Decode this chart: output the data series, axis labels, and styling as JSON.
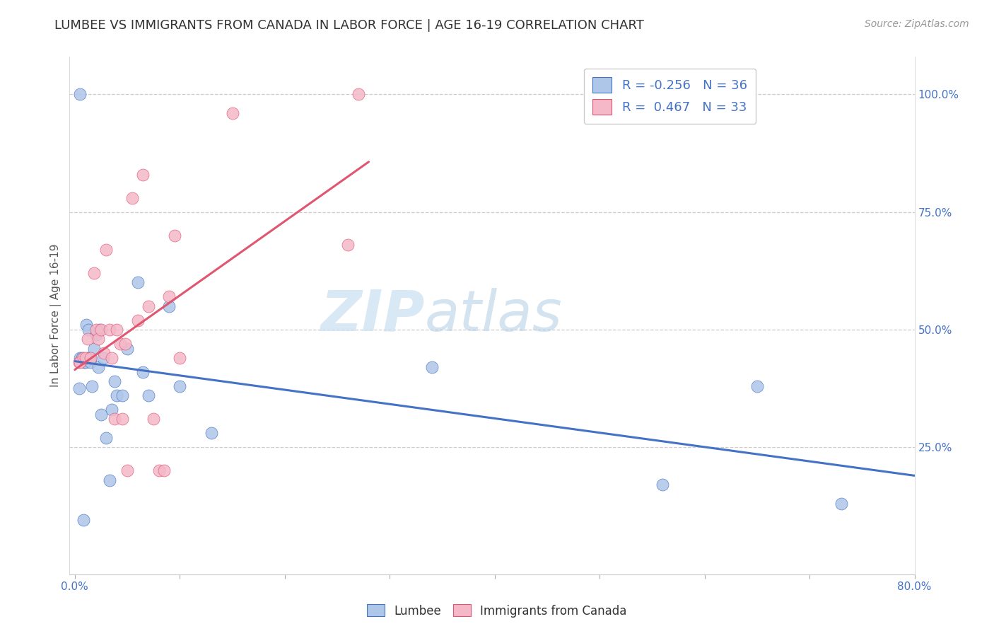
{
  "title": "LUMBEE VS IMMIGRANTS FROM CANADA IN LABOR FORCE | AGE 16-19 CORRELATION CHART",
  "source": "Source: ZipAtlas.com",
  "ylabel": "In Labor Force | Age 16-19",
  "xlim": [
    -0.005,
    0.8
  ],
  "ylim": [
    -0.02,
    1.08
  ],
  "ytick_values": [
    0.25,
    0.5,
    0.75,
    1.0
  ],
  "ytick_labels": [
    "25.0%",
    "50.0%",
    "75.0%",
    "100.0%"
  ],
  "xtick_values": [
    0.0,
    0.1,
    0.2,
    0.3,
    0.4,
    0.5,
    0.6,
    0.7,
    0.8
  ],
  "xtick_shown": [
    "0.0%",
    "",
    "",
    "",
    "",
    "",
    "",
    "",
    "80.0%"
  ],
  "legend_r_lumbee": "-0.256",
  "legend_n_lumbee": "36",
  "legend_r_canada": "0.467",
  "legend_n_canada": "33",
  "lumbee_color": "#aec6e8",
  "canada_color": "#f4b8c8",
  "lumbee_line_color": "#4472c4",
  "canada_line_color": "#e05570",
  "watermark_zip": "ZIP",
  "watermark_atlas": "atlas",
  "background_color": "#ffffff",
  "lumbee_x": [
    0.004,
    0.005,
    0.007,
    0.008,
    0.009,
    0.01,
    0.011,
    0.012,
    0.013,
    0.014,
    0.015,
    0.016,
    0.018,
    0.02,
    0.022,
    0.024,
    0.025,
    0.027,
    0.03,
    0.033,
    0.035,
    0.038,
    0.04,
    0.045,
    0.05,
    0.06,
    0.065,
    0.07,
    0.09,
    0.1,
    0.13,
    0.34,
    0.56,
    0.65,
    0.73,
    0.005
  ],
  "lumbee_y": [
    0.375,
    0.44,
    0.44,
    0.095,
    0.43,
    0.43,
    0.51,
    0.44,
    0.5,
    0.44,
    0.43,
    0.38,
    0.46,
    0.49,
    0.42,
    0.5,
    0.32,
    0.44,
    0.27,
    0.18,
    0.33,
    0.39,
    0.36,
    0.36,
    0.46,
    0.6,
    0.41,
    0.36,
    0.55,
    0.38,
    0.28,
    0.42,
    0.17,
    0.38,
    0.13,
    1.0
  ],
  "canada_x": [
    0.004,
    0.005,
    0.008,
    0.01,
    0.012,
    0.015,
    0.018,
    0.02,
    0.022,
    0.025,
    0.028,
    0.03,
    0.033,
    0.035,
    0.038,
    0.04,
    0.043,
    0.045,
    0.048,
    0.05,
    0.055,
    0.06,
    0.065,
    0.07,
    0.075,
    0.08,
    0.085,
    0.09,
    0.095,
    0.1,
    0.15,
    0.26,
    0.27
  ],
  "canada_y": [
    0.43,
    0.43,
    0.44,
    0.44,
    0.48,
    0.44,
    0.62,
    0.5,
    0.48,
    0.5,
    0.45,
    0.67,
    0.5,
    0.44,
    0.31,
    0.5,
    0.47,
    0.31,
    0.47,
    0.2,
    0.78,
    0.52,
    0.83,
    0.55,
    0.31,
    0.2,
    0.2,
    0.57,
    0.7,
    0.44,
    0.96,
    0.68,
    1.0
  ]
}
